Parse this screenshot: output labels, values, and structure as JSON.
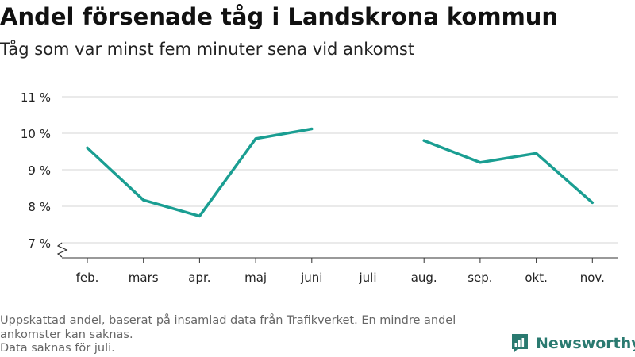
{
  "title": "Andel försenade tåg i Landskrona kommun",
  "subtitle": "Tåg som var minst fem minuter sena vid ankomst",
  "footnote": {
    "line1": "Uppskattad andel, baserat på insamlad data från Trafikverket. En mindre andel ankomster kan saknas.",
    "line2": "Data saknas för juli."
  },
  "brand": {
    "name": "Newsworthy",
    "icon": "newsworthy-logo-icon",
    "color": "#2a7a70"
  },
  "chart_data": {
    "type": "line",
    "title": "Andel försenade tåg i Landskrona kommun",
    "subtitle": "Tåg som var minst fem minuter sena vid ankomst",
    "categories": [
      "feb.",
      "mars",
      "apr.",
      "maj",
      "juni",
      "juli",
      "aug.",
      "sep.",
      "okt.",
      "nov."
    ],
    "series": [
      {
        "values": [
          9.6,
          8.17,
          7.73,
          9.85,
          10.12,
          null,
          9.8,
          9.2,
          9.45,
          8.1
        ],
        "color": "#1a9e92"
      }
    ],
    "yticks": [
      7,
      8,
      9,
      10,
      11
    ],
    "ytick_labels": [
      "7 %",
      "8 %",
      "9 %",
      "10 %",
      "11 %"
    ],
    "ylim": [
      7,
      11
    ],
    "y_axis_break": true,
    "grid": true,
    "legend": "none",
    "xlabel": "",
    "ylabel": ""
  }
}
